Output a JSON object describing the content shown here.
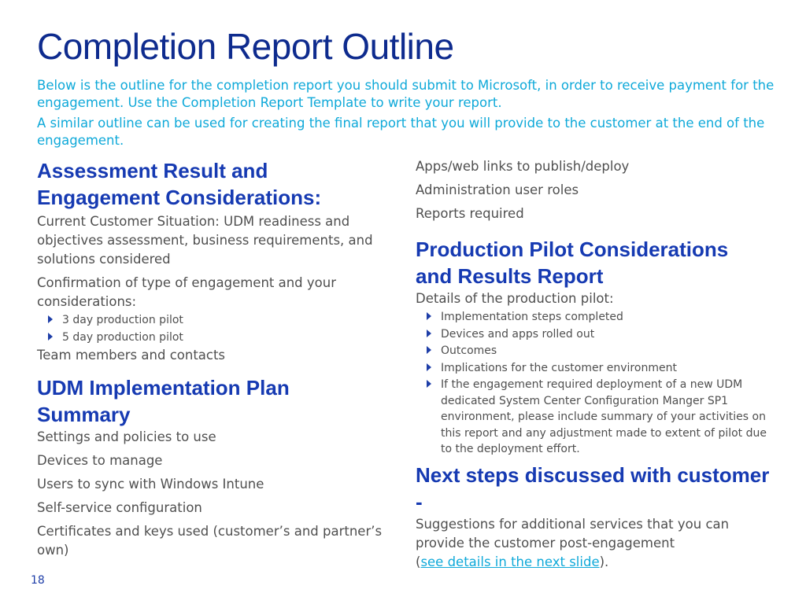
{
  "title": "Completion Report Outline",
  "intro": [
    "Below is the outline for the completion report you should submit to Microsoft, in order to receive payment for the engagement. Use the Completion Report Template to write your report.",
    "A similar outline can be used for creating the final report that you will provide to the customer at the end of the engagement."
  ],
  "left": {
    "section1": {
      "heading": "Assessment Result and Engagement Considerations:",
      "items": [
        "Current Customer Situation: UDM readiness and objectives assessment, business requirements, and solutions considered",
        "Confirmation of type of engagement and your considerations:"
      ],
      "subitems": [
        "3 day production pilot",
        "5 day production pilot"
      ],
      "after": "Team members and contacts"
    },
    "section2": {
      "heading": "UDM Implementation Plan Summary",
      "items": [
        "Settings and policies to use",
        "Devices to manage",
        "Users to sync with Windows Intune",
        "Self-service configuration",
        "Certificates and keys used (customer’s and partner’s own)"
      ]
    }
  },
  "right": {
    "top_items": [
      "Apps/web links to publish/deploy",
      "Administration user roles",
      "Reports required"
    ],
    "section3": {
      "heading": "Production Pilot Considerations and Results Report",
      "lead": "Details of the production pilot:",
      "subitems": [
        "Implementation steps completed",
        "Devices and apps rolled out",
        "Outcomes",
        "Implications for the customer environment",
        "If the engagement required deployment of a new UDM dedicated System Center Configuration Manger SP1 environment, please include summary of your activities on this report and any adjustment made to extent of pilot due to the deployment effort."
      ]
    },
    "section4": {
      "heading": "Next steps discussed with customer -",
      "text": "Suggestions for additional services that you can provide the customer post-engagement",
      "paren_open": "(",
      "link": "see details in the next slide",
      "paren_close": ")."
    }
  },
  "page_number": "18",
  "colors": {
    "title": "#0e2b8e",
    "intro": "#0fa9d9",
    "heading": "#163ab2",
    "body": "#4f4f4f",
    "bullet": "#1e3ea8"
  }
}
